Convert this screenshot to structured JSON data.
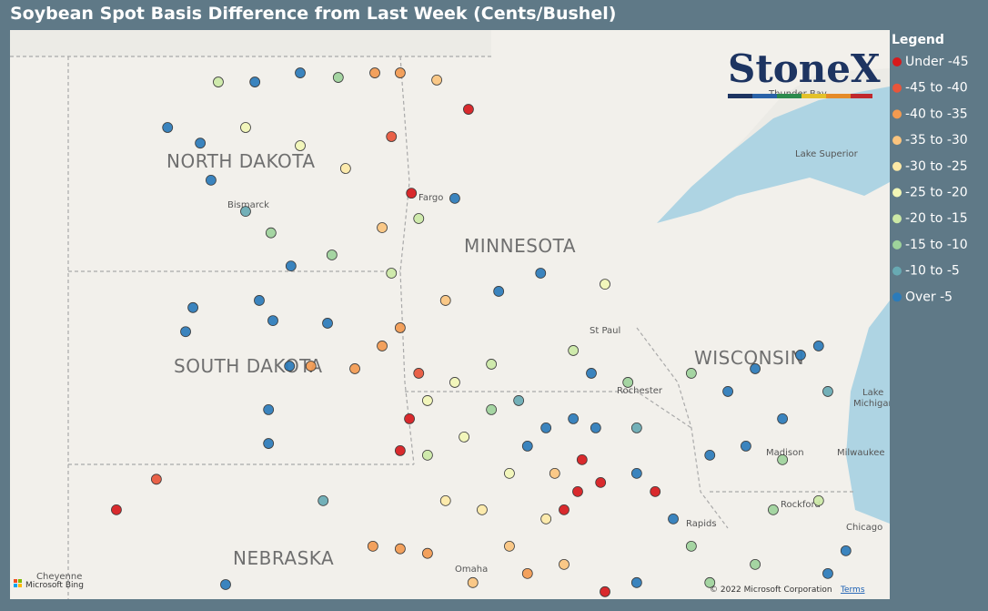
{
  "title": "Soybean Spot Basis Difference from Last Week (Cents/Bushel)",
  "logo": "StoneX",
  "legend": {
    "title": "Legend",
    "items": [
      {
        "label": "Under -45",
        "color": "#d7191c"
      },
      {
        "label": "-45 to -40",
        "color": "#e8553a"
      },
      {
        "label": "-40 to -35",
        "color": "#f39a50"
      },
      {
        "label": "-35 to -30",
        "color": "#fbc47e"
      },
      {
        "label": "-30 to -25",
        "color": "#fde9a6"
      },
      {
        "label": "-25 to -20",
        "color": "#f2f6b6"
      },
      {
        "label": "-20 to -15",
        "color": "#cce9a6"
      },
      {
        "label": "-15 to -10",
        "color": "#9ed39b"
      },
      {
        "label": "-10 to -5",
        "color": "#68aab3"
      },
      {
        "label": "Over -5",
        "color": "#2b7bba"
      }
    ]
  },
  "map_labels": {
    "north_dakota": "NORTH DAKOTA",
    "south_dakota": "SOUTH DAKOTA",
    "minnesota": "MINNESOTA",
    "wisconsin": "WISCONSIN",
    "nebraska": "NEBRASKA",
    "bismarck": "Bismarck",
    "fargo": "Fargo",
    "st_paul": "St Paul",
    "rochester": "Rochester",
    "madison": "Madison",
    "milwaukee": "Milwaukee",
    "chicago": "Chicago",
    "omaha": "Omaha",
    "cheyenne": "Cheyenne",
    "rapids": "Rapids",
    "rockford": "Rockford",
    "lake_superior": "Lake Superior",
    "lake_michigan_1": "Lake",
    "lake_michigan_2": "Michigan",
    "thunder_bay": "Thunder Bay"
  },
  "attribution": {
    "copyright": "© 2022 Microsoft Corporation",
    "terms": "Terms",
    "bing": "Microsoft Bing"
  },
  "points": [
    [
      -101.99,
      48.04,
      9
    ],
    [
      -101.32,
      47.8,
      9
    ],
    [
      -101.1,
      47.23,
      9
    ],
    [
      -100.39,
      46.75,
      8
    ],
    [
      -99.87,
      46.42,
      7
    ],
    [
      -99.46,
      45.91,
      9
    ],
    [
      -101.47,
      45.27,
      9
    ],
    [
      -101.62,
      44.9,
      9
    ],
    [
      -100.11,
      45.38,
      9
    ],
    [
      -99.83,
      45.07,
      9
    ],
    [
      -98.71,
      45.03,
      9
    ],
    [
      -99.49,
      44.37,
      9
    ],
    [
      -99.05,
      44.37,
      2
    ],
    [
      -98.15,
      44.33,
      2
    ],
    [
      -97.59,
      44.68,
      2
    ],
    [
      -99.92,
      43.7,
      9
    ],
    [
      -99.92,
      43.18,
      9
    ],
    [
      -102.22,
      42.63,
      1
    ],
    [
      -103.04,
      42.16,
      0
    ],
    [
      -100.8,
      41.01,
      9
    ],
    [
      -98.8,
      42.3,
      8
    ],
    [
      -97.78,
      41.6,
      2
    ],
    [
      -97.22,
      41.56,
      2
    ],
    [
      -96.66,
      41.49,
      2
    ],
    [
      -95.73,
      41.04,
      3
    ],
    [
      -94.98,
      41.6,
      3
    ],
    [
      -94.23,
      42.02,
      4
    ],
    [
      -93.86,
      42.16,
      0
    ],
    [
      -93.58,
      42.44,
      0
    ],
    [
      -93.11,
      42.58,
      0
    ],
    [
      -93.49,
      42.93,
      0
    ],
    [
      -93.02,
      40.9,
      0
    ],
    [
      -94.05,
      42.72,
      3
    ],
    [
      -94.61,
      43.14,
      9
    ],
    [
      -94.23,
      43.42,
      9
    ],
    [
      -93.67,
      43.56,
      9
    ],
    [
      -93.21,
      43.42,
      9
    ],
    [
      -92.37,
      42.72,
      9
    ],
    [
      -91.62,
      42.02,
      9
    ],
    [
      -91.99,
      42.44,
      0
    ],
    [
      -92.37,
      43.42,
      8
    ],
    [
      -93.3,
      44.26,
      9
    ],
    [
      -92.55,
      44.12,
      7
    ],
    [
      -91.25,
      44.26,
      7
    ],
    [
      -90.5,
      43.98,
      9
    ],
    [
      -89.94,
      44.33,
      9
    ],
    [
      -89.01,
      44.54,
      9
    ],
    [
      -88.64,
      44.68,
      9
    ],
    [
      -88.45,
      43.98,
      8
    ],
    [
      -89.38,
      43.56,
      9
    ],
    [
      -90.13,
      43.14,
      9
    ],
    [
      -90.87,
      43.0,
      9
    ],
    [
      -89.38,
      42.93,
      7
    ],
    [
      -89.57,
      42.16,
      7
    ],
    [
      -88.64,
      42.3,
      6
    ],
    [
      -88.08,
      41.53,
      9
    ],
    [
      -88.45,
      41.18,
      9
    ],
    [
      -89.94,
      41.32,
      7
    ],
    [
      -91.25,
      41.6,
      7
    ],
    [
      -90.87,
      41.04,
      7
    ],
    [
      -92.37,
      41.04,
      9
    ],
    [
      -95.2,
      45.52,
      9
    ],
    [
      -94.34,
      45.8,
      9
    ],
    [
      -93.02,
      45.63,
      5
    ],
    [
      -93.67,
      44.61,
      6
    ],
    [
      -95.35,
      44.4,
      6
    ],
    [
      -96.1,
      44.12,
      5
    ],
    [
      -96.66,
      43.84,
      5
    ],
    [
      -97.03,
      43.56,
      0
    ],
    [
      -97.22,
      43.07,
      0
    ],
    [
      -96.66,
      43.0,
      6
    ],
    [
      -95.91,
      43.28,
      5
    ],
    [
      -95.35,
      43.7,
      7
    ],
    [
      -94.79,
      43.84,
      8
    ],
    [
      -96.29,
      42.3,
      4
    ],
    [
      -95.54,
      42.16,
      4
    ],
    [
      -94.98,
      42.72,
      5
    ],
    [
      -96.99,
      47.03,
      0
    ],
    [
      -97.4,
      47.9,
      1
    ],
    [
      -97.22,
      48.88,
      2
    ],
    [
      -97.74,
      48.88,
      2
    ],
    [
      -96.47,
      48.77,
      3
    ],
    [
      -95.82,
      48.32,
      0
    ],
    [
      -96.1,
      46.95,
      9
    ],
    [
      -96.84,
      46.64,
      6
    ],
    [
      -97.59,
      46.5,
      3
    ],
    [
      -98.34,
      47.41,
      4
    ],
    [
      -99.27,
      47.76,
      5
    ],
    [
      -100.39,
      48.04,
      5
    ],
    [
      -100.95,
      48.74,
      6
    ],
    [
      -100.2,
      48.74,
      9
    ],
    [
      -99.27,
      48.88,
      9
    ],
    [
      -98.49,
      48.81,
      7
    ],
    [
      -98.62,
      46.08,
      7
    ],
    [
      -97.4,
      45.8,
      6
    ],
    [
      -96.29,
      45.38,
      3
    ],
    [
      -97.22,
      44.96,
      2
    ],
    [
      -96.84,
      44.26,
      1
    ],
    [
      -93.86,
      41.32,
      3
    ],
    [
      -94.61,
      41.18,
      2
    ]
  ]
}
